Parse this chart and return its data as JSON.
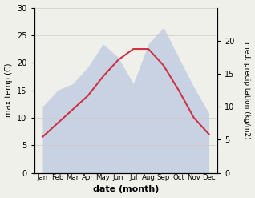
{
  "months": [
    "Jan",
    "Feb",
    "Mar",
    "Apr",
    "May",
    "Jun",
    "Jul",
    "Aug",
    "Sep",
    "Oct",
    "Nov",
    "Dec"
  ],
  "max_temp_C": [
    6.5,
    9.0,
    11.5,
    14.0,
    17.5,
    20.5,
    22.5,
    22.5,
    19.5,
    15.0,
    10.0,
    7.0
  ],
  "precipitation_mm": [
    10.0,
    12.5,
    13.5,
    16.0,
    19.5,
    17.5,
    13.5,
    19.5,
    22.0,
    17.5,
    13.0,
    9.0
  ],
  "temp_line_color": "#cc3344",
  "precip_fill_color": "#aabbdd",
  "ylabel_left": "max temp (C)",
  "ylabel_right": "med. precipitation (kg/m2)",
  "xlabel": "date (month)",
  "ylim_left": [
    0,
    30
  ],
  "ylim_right": [
    0,
    25
  ],
  "yticks_left": [
    0,
    5,
    10,
    15,
    20,
    25,
    30
  ],
  "yticks_right": [
    0,
    5,
    10,
    15,
    20
  ],
  "bg_color": "#f0f0eb"
}
